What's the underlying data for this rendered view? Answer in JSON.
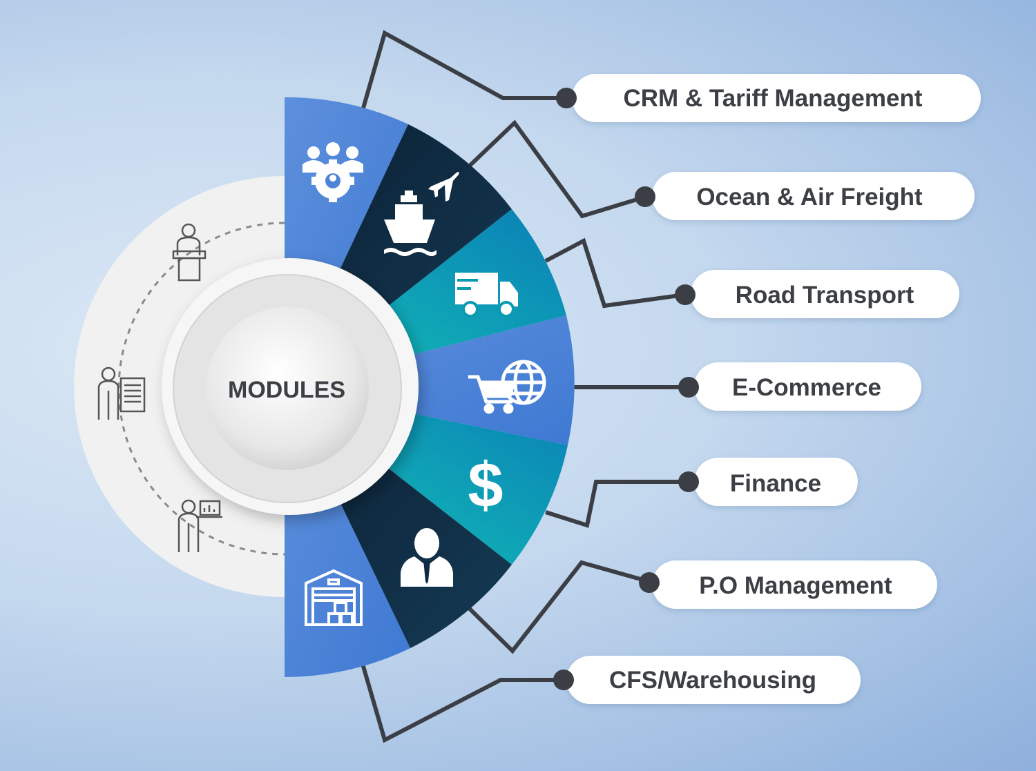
{
  "title": "MODULES",
  "modules": [
    {
      "label": "CRM & Tariff Management",
      "icon": "team-gear-icon"
    },
    {
      "label": "Ocean & Air Freight",
      "icon": "ship-plane-icon"
    },
    {
      "label": "Road Transport",
      "icon": "truck-icon"
    },
    {
      "label": "E-Commerce",
      "icon": "cart-globe-icon"
    },
    {
      "label": "Finance",
      "icon": "dollar-icon"
    },
    {
      "label": "P.O Management",
      "icon": "manager-icon"
    },
    {
      "label": "CFS/Warehousing",
      "icon": "warehouse-icon"
    }
  ],
  "side_icons": [
    "presenter-podium-icon",
    "presenter-board-icon",
    "presenter-laptop-icon"
  ],
  "colors": {
    "blue": "#4e83d8",
    "navy": "#0d2a42",
    "teal": "#0a9bb0",
    "connector": "#3b3f45",
    "label_text": "#3c3f44",
    "pill": "#ffffff"
  }
}
